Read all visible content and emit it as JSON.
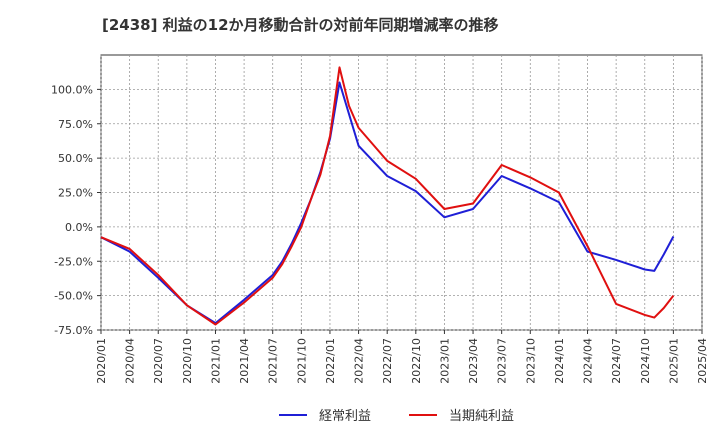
{
  "chart_data": {
    "type": "line",
    "title": "[2438]  利益の12か月移動合計の対前年同期増減率の推移",
    "xlabel": "",
    "ylabel": "",
    "ylim": [
      -75,
      125
    ],
    "yticks": [
      -75,
      -50,
      -25,
      0,
      25,
      50,
      75,
      100
    ],
    "ytick_labels": [
      "-75.0%",
      "-50.0%",
      "-25.0%",
      "0.0%",
      "25.0%",
      "50.0%",
      "75.0%",
      "100.0%"
    ],
    "xticks": [
      "2020/01",
      "2020/04",
      "2020/07",
      "2020/10",
      "2021/01",
      "2021/04",
      "2021/07",
      "2021/10",
      "2022/01",
      "2022/04",
      "2022/07",
      "2022/10",
      "2023/01",
      "2023/04",
      "2023/07",
      "2023/10",
      "2024/01",
      "2024/04",
      "2024/07",
      "2024/10",
      "2025/01",
      "2025/04"
    ],
    "grid": true,
    "legend_position": "bottom",
    "series": [
      {
        "name": "経常利益",
        "color": "#1f1fd6",
        "x": [
          "2020/01",
          "2020/04",
          "2020/07",
          "2020/10",
          "2021/01",
          "2021/04",
          "2021/07",
          "2021/08",
          "2021/09",
          "2021/10",
          "2021/11",
          "2021/12",
          "2022/01",
          "2022/02",
          "2022/03",
          "2022/04",
          "2022/07",
          "2022/10",
          "2023/01",
          "2023/04",
          "2023/07",
          "2023/10",
          "2024/01",
          "2024/04",
          "2024/07",
          "2024/10",
          "2024/11",
          "2024/12",
          "2025/01"
        ],
        "values": [
          -7.5,
          -18,
          -37,
          -57,
          -70,
          -53,
          -35,
          -25,
          -12,
          3,
          20,
          40,
          64,
          105,
          82,
          59,
          37,
          26,
          7,
          13,
          37,
          28,
          18,
          -18,
          -24,
          -31,
          -32,
          -20,
          -7
        ]
      },
      {
        "name": "当期純利益",
        "color": "#e01010",
        "x": [
          "2020/01",
          "2020/04",
          "2020/07",
          "2020/10",
          "2021/01",
          "2021/04",
          "2021/07",
          "2021/08",
          "2021/09",
          "2021/10",
          "2021/11",
          "2021/12",
          "2022/01",
          "2022/02",
          "2022/03",
          "2022/04",
          "2022/07",
          "2022/10",
          "2023/01",
          "2023/04",
          "2023/07",
          "2023/10",
          "2024/01",
          "2024/04",
          "2024/07",
          "2024/10",
          "2024/11",
          "2024/12",
          "2025/01"
        ],
        "values": [
          -7.5,
          -16,
          -35,
          -57,
          -71,
          -55,
          -37,
          -27,
          -14,
          0,
          20,
          38,
          66,
          116,
          88,
          72,
          48,
          35,
          13,
          17,
          45,
          36,
          25,
          -14,
          -56,
          -64,
          -66,
          -59,
          -50
        ]
      }
    ]
  }
}
